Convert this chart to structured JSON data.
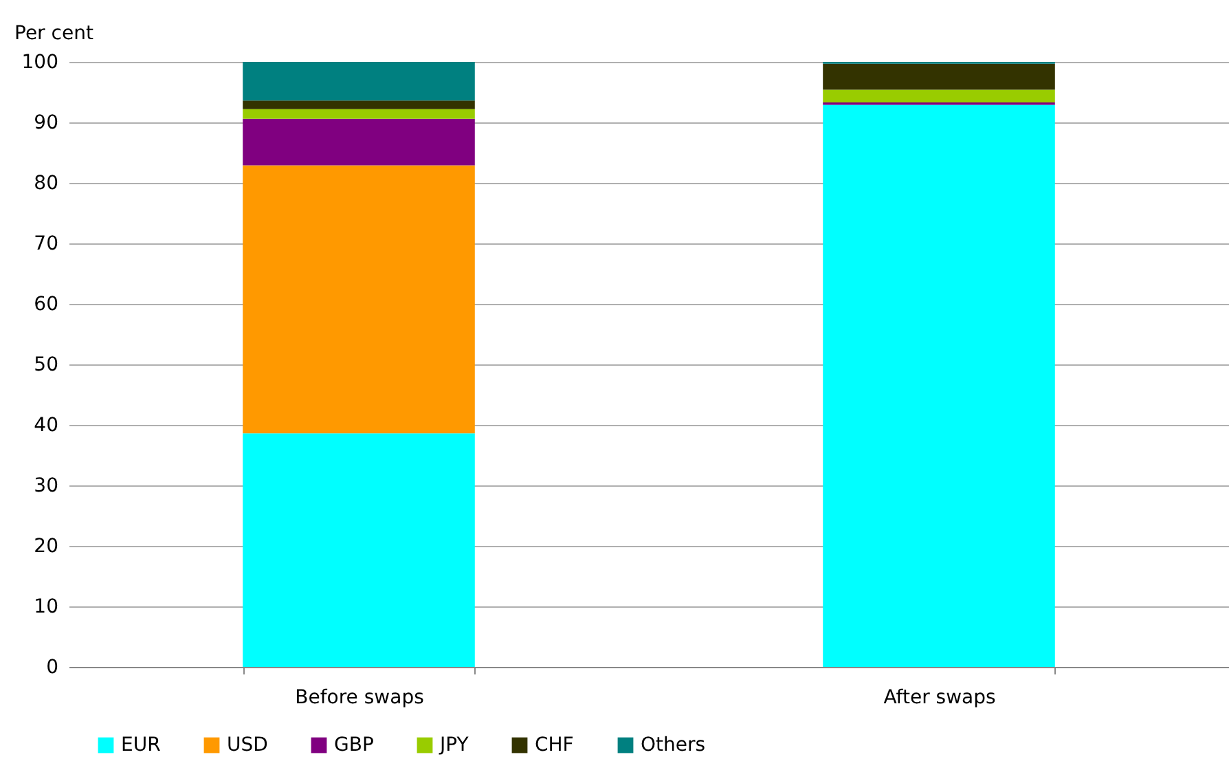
{
  "chart_data": {
    "type": "bar",
    "ylabel": "Per cent",
    "categories": [
      "Before swaps",
      "After swaps"
    ],
    "stacked": true,
    "series": [
      {
        "name": "EUR",
        "color": "#00ffff",
        "values": [
          38.6,
          92.9
        ]
      },
      {
        "name": "USD",
        "color": "#ff9900",
        "values": [
          44.3,
          0
        ]
      },
      {
        "name": "GBP",
        "color": "#800080",
        "values": [
          7.7,
          0.4
        ]
      },
      {
        "name": "JPY",
        "color": "#99cc00",
        "values": [
          1.6,
          2.1
        ]
      },
      {
        "name": "CHF",
        "color": "#333300",
        "values": [
          1.4,
          4.3
        ]
      },
      {
        "name": "Others",
        "color": "#008080",
        "values": [
          6.4,
          0.3
        ]
      }
    ],
    "ylim": [
      0,
      100
    ],
    "yticks": [
      0,
      10,
      20,
      30,
      40,
      50,
      60,
      70,
      80,
      90,
      100
    ],
    "grid": "y",
    "legend": "bottom"
  }
}
